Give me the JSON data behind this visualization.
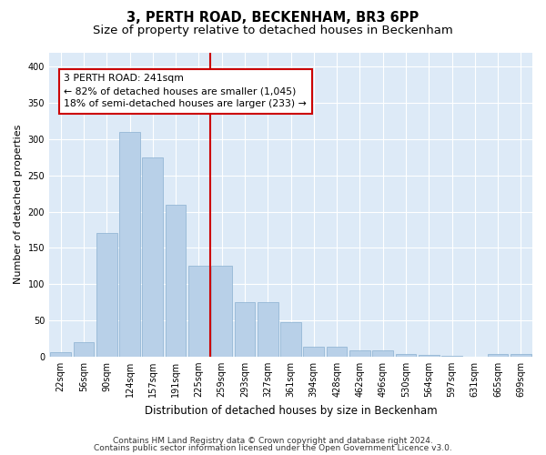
{
  "title": "3, PERTH ROAD, BECKENHAM, BR3 6PP",
  "subtitle": "Size of property relative to detached houses in Beckenham",
  "xlabel": "Distribution of detached houses by size in Beckenham",
  "ylabel": "Number of detached properties",
  "categories": [
    "22sqm",
    "56sqm",
    "90sqm",
    "124sqm",
    "157sqm",
    "191sqm",
    "225sqm",
    "259sqm",
    "293sqm",
    "327sqm",
    "361sqm",
    "394sqm",
    "428sqm",
    "462sqm",
    "496sqm",
    "530sqm",
    "564sqm",
    "597sqm",
    "631sqm",
    "665sqm",
    "699sqm"
  ],
  "values": [
    6,
    20,
    170,
    310,
    275,
    210,
    125,
    125,
    75,
    75,
    48,
    14,
    14,
    8,
    8,
    3,
    2,
    1,
    0,
    4,
    4
  ],
  "bar_color": "#b8d0e8",
  "bar_edgecolor": "#8ab0d0",
  "vline_x": 6.5,
  "annotation_line1": "3 PERTH ROAD: 241sqm",
  "annotation_line2": "← 82% of detached houses are smaller (1,045)",
  "annotation_line3": "18% of semi-detached houses are larger (233) →",
  "annotation_box_facecolor": "#ffffff",
  "annotation_box_edgecolor": "#cc0000",
  "vline_color": "#cc0000",
  "ylim": [
    0,
    420
  ],
  "yticks": [
    0,
    50,
    100,
    150,
    200,
    250,
    300,
    350,
    400
  ],
  "plot_bg_color": "#ddeaf7",
  "fig_bg_color": "#ffffff",
  "footer_line1": "Contains HM Land Registry data © Crown copyright and database right 2024.",
  "footer_line2": "Contains public sector information licensed under the Open Government Licence v3.0.",
  "title_fontsize": 10.5,
  "subtitle_fontsize": 9.5,
  "xlabel_fontsize": 8.5,
  "ylabel_fontsize": 8,
  "tick_fontsize": 7,
  "annotation_fontsize": 7.8,
  "footer_fontsize": 6.5,
  "grid_color": "#ffffff"
}
